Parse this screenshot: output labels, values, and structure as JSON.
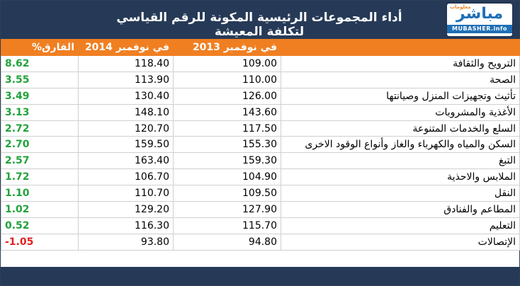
{
  "header": {
    "title": "أداء المجموعات الرئيسية المكونة للرقم القياسي لتكلفة المعيشة",
    "logo_small": "معلومات",
    "logo_ar": "مباشر",
    "logo_en": "MUBASHER.info"
  },
  "table": {
    "columns": {
      "diff": "الفارق%",
      "nov2014": "في نوفمبر 2014",
      "nov2013": "في نوفمبر 2013",
      "category": ""
    },
    "rows": [
      {
        "category": "الترويح والثقافة",
        "nov2013": "109.00",
        "nov2014": "118.40",
        "diff": "8.62",
        "sign": "pos"
      },
      {
        "category": "الصحة",
        "nov2013": "110.00",
        "nov2014": "113.90",
        "diff": "3.55",
        "sign": "pos"
      },
      {
        "category": "تأثيث وتجهيزات المنزل وصيانتها",
        "nov2013": "126.00",
        "nov2014": "130.40",
        "diff": "3.49",
        "sign": "pos"
      },
      {
        "category": "الأغذية والمشروبات",
        "nov2013": "143.60",
        "nov2014": "148.10",
        "diff": "3.13",
        "sign": "pos"
      },
      {
        "category": "السلع والخدمات المتنوعة",
        "nov2013": "117.50",
        "nov2014": "120.70",
        "diff": "2.72",
        "sign": "pos"
      },
      {
        "category": "السكن والمياه والكهرباء والغاز وأنواع الوقود الاخرى",
        "nov2013": "155.30",
        "nov2014": "159.50",
        "diff": "2.70",
        "sign": "pos"
      },
      {
        "category": "التبغ",
        "nov2013": "159.30",
        "nov2014": "163.40",
        "diff": "2.57",
        "sign": "pos"
      },
      {
        "category": "الملابس والاحذية",
        "nov2013": "104.90",
        "nov2014": "106.70",
        "diff": "1.72",
        "sign": "pos"
      },
      {
        "category": "النقل",
        "nov2013": "109.50",
        "nov2014": "110.70",
        "diff": "1.10",
        "sign": "pos"
      },
      {
        "category": "المطاعم والفنادق",
        "nov2013": "127.90",
        "nov2014": "129.20",
        "diff": "1.02",
        "sign": "pos"
      },
      {
        "category": "التعليم",
        "nov2013": "115.70",
        "nov2014": "116.30",
        "diff": "0.52",
        "sign": "pos"
      },
      {
        "category": "الإتصالات",
        "nov2013": "94.80",
        "nov2014": "93.80",
        "diff": "-1.05",
        "sign": "neg"
      }
    ]
  },
  "colors": {
    "header_bg": "#263a57",
    "column_header_bg": "#f07f22",
    "positive": "#22a23a",
    "negative": "#e02020",
    "brand_blue": "#1f6fb5"
  }
}
